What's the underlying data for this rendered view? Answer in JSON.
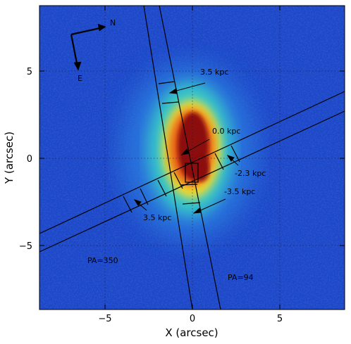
{
  "figure": {
    "x_axis_label": "X (arcsec)",
    "y_axis_label": "Y (arcsec)",
    "x_ticks": [
      "−5",
      "0",
      "5"
    ],
    "y_ticks": [
      "5",
      "0",
      "−5"
    ],
    "compass": {
      "north": "N",
      "east": "E"
    },
    "slit_labels": {
      "slit_a": "PA=350",
      "slit_b": "PA=94"
    },
    "position_labels": [
      "3.5 kpc",
      "0.0 kpc",
      "-2.3 kpc",
      "-3.5 kpc",
      "3.5 kpc"
    ],
    "colors": {
      "background_low": "#1e46c8",
      "background_mid": "#2a7de0",
      "halo": "#37c8c8",
      "ring": "#f0dc32",
      "inner": "#e65a14",
      "core": "#8c0a0a",
      "overlay_lines": "#000000"
    }
  }
}
